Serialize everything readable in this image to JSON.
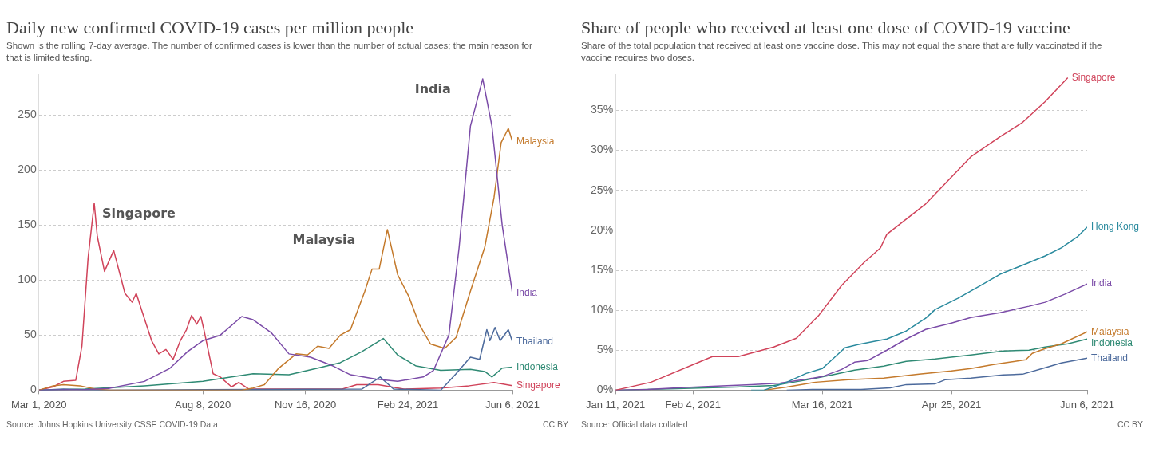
{
  "chart_data": [
    {
      "type": "line",
      "title": "Daily new confirmed COVID-19 cases per million people",
      "subtitle": "Shown is the rolling 7-day average. The number of confirmed cases is lower than the number of actual cases; the main reason for that is limited testing.",
      "xlim": [
        "2020-03-01",
        "2021-06-06"
      ],
      "xticks": [
        {
          "value": "2020-03-01",
          "label": "Mar 1, 2020"
        },
        {
          "value": "2020-08-08",
          "label": "Aug 8, 2020"
        },
        {
          "value": "2020-11-16",
          "label": "Nov 16, 2020"
        },
        {
          "value": "2021-02-24",
          "label": "Feb 24, 2021"
        },
        {
          "value": "2021-06-06",
          "label": "Jun 6, 2021"
        }
      ],
      "ylim": [
        0,
        287
      ],
      "yticks": [
        0,
        50,
        100,
        150,
        200,
        250
      ],
      "grid": "y",
      "legend": false,
      "marker": "none",
      "line_style": "solid",
      "series": [
        {
          "name": "India",
          "color": "#7b4ca8",
          "x": [
            "2020-03-01",
            "2020-04-15",
            "2020-05-08",
            "2020-06-12",
            "2020-07-07",
            "2020-07-24",
            "2020-08-08",
            "2020-08-25",
            "2020-09-15",
            "2020-09-26",
            "2020-10-14",
            "2020-10-31",
            "2020-11-21",
            "2020-12-13",
            "2020-12-30",
            "2021-01-24",
            "2021-02-14",
            "2021-03-11",
            "2021-03-21",
            "2021-04-05",
            "2021-04-15",
            "2021-04-26",
            "2021-05-08",
            "2021-05-17",
            "2021-05-27",
            "2021-06-06"
          ],
          "values": [
            0,
            0.5,
            1.5,
            8,
            20,
            35,
            45,
            50,
            67,
            64,
            52,
            33,
            30,
            22,
            14,
            10,
            8,
            12,
            18,
            50,
            130,
            240,
            283,
            240,
            150,
            88
          ]
        },
        {
          "name": "Malaysia",
          "color": "#c47a2c",
          "x": [
            "2020-03-01",
            "2020-03-15",
            "2020-03-25",
            "2020-04-10",
            "2020-04-25",
            "2020-05-10",
            "2020-09-15",
            "2020-09-26",
            "2020-10-07",
            "2020-10-21",
            "2020-11-07",
            "2020-11-18",
            "2020-11-28",
            "2020-12-09",
            "2020-12-20",
            "2020-12-30",
            "2021-01-13",
            "2021-01-20",
            "2021-01-27",
            "2021-02-04",
            "2021-02-14",
            "2021-02-25",
            "2021-03-07",
            "2021-03-18",
            "2021-04-01",
            "2021-04-12",
            "2021-04-26",
            "2021-05-10",
            "2021-05-19",
            "2021-05-26",
            "2021-06-02",
            "2021-06-06"
          ],
          "values": [
            0,
            4,
            5,
            4,
            1,
            0,
            0,
            2,
            5,
            20,
            33,
            32,
            40,
            38,
            50,
            55,
            90,
            110,
            110,
            146,
            105,
            85,
            60,
            42,
            38,
            48,
            90,
            130,
            175,
            225,
            238,
            226
          ]
        },
        {
          "name": "Thailand",
          "color": "#4c6a9c",
          "x": [
            "2020-03-01",
            "2020-03-25",
            "2020-05-01",
            "2021-01-10",
            "2021-01-28",
            "2021-02-10",
            "2021-03-28",
            "2021-04-12",
            "2021-04-26",
            "2021-05-05",
            "2021-05-12",
            "2021-05-15",
            "2021-05-20",
            "2021-05-25",
            "2021-06-02",
            "2021-06-06"
          ],
          "values": [
            0,
            1,
            0,
            1,
            12,
            1,
            0,
            15,
            30,
            28,
            55,
            45,
            57,
            45,
            55,
            44
          ]
        },
        {
          "name": "Indonesia",
          "color": "#2f8a74",
          "x": [
            "2020-03-01",
            "2020-04-15",
            "2020-06-12",
            "2020-08-08",
            "2020-09-05",
            "2020-09-26",
            "2020-10-31",
            "2020-11-28",
            "2020-12-20",
            "2021-01-10",
            "2021-01-31",
            "2021-02-14",
            "2021-03-04",
            "2021-03-28",
            "2021-04-26",
            "2021-05-10",
            "2021-05-17",
            "2021-05-27",
            "2021-06-06"
          ],
          "values": [
            0,
            1,
            4,
            8,
            12,
            15,
            14,
            20,
            25,
            35,
            47,
            32,
            22,
            18,
            19,
            17,
            12,
            20,
            21
          ]
        },
        {
          "name": "Singapore",
          "color": "#d0435a",
          "x": [
            "2020-03-01",
            "2020-03-15",
            "2020-03-25",
            "2020-04-06",
            "2020-04-12",
            "2020-04-18",
            "2020-04-24",
            "2020-04-27",
            "2020-05-04",
            "2020-05-13",
            "2020-05-24",
            "2020-05-31",
            "2020-06-04",
            "2020-06-12",
            "2020-06-19",
            "2020-06-26",
            "2020-07-03",
            "2020-07-10",
            "2020-07-17",
            "2020-07-23",
            "2020-07-28",
            "2020-08-02",
            "2020-08-06",
            "2020-08-09",
            "2020-08-18",
            "2020-08-25",
            "2020-09-05",
            "2020-09-12",
            "2020-09-22",
            "2020-12-22",
            "2021-01-05",
            "2021-01-26",
            "2021-02-20",
            "2021-03-28",
            "2021-04-25",
            "2021-05-19",
            "2021-06-06"
          ],
          "values": [
            0,
            3,
            8,
            9,
            40,
            120,
            170,
            140,
            108,
            127,
            88,
            80,
            88,
            65,
            45,
            33,
            37,
            28,
            45,
            55,
            68,
            60,
            67,
            55,
            15,
            12,
            3,
            7,
            1,
            1,
            5,
            5,
            1,
            2,
            4,
            7,
            4
          ]
        }
      ],
      "annotations": [
        {
          "text": "Singapore",
          "x": "2020-04-24",
          "y": 170
        },
        {
          "text": "Malaysia",
          "x": "2021-02-04",
          "y": 146
        },
        {
          "text": "India",
          "x": "2021-05-08",
          "y": 283
        },
        "Source: Johns Hopkins University CSSE COVID-19 Data",
        "CC BY"
      ]
    },
    {
      "type": "line",
      "title": "Share of people who received at least one dose of COVID-19 vaccine",
      "subtitle": "Share of the total population that received at least one vaccine dose. This may not equal the share that are fully vaccinated if the vaccine requires two doses.",
      "xlim": [
        "2021-01-11",
        "2021-06-06"
      ],
      "xticks": [
        {
          "value": "2021-01-11",
          "label": "Jan 11, 2021"
        },
        {
          "value": "2021-02-04",
          "label": "Feb 4, 2021"
        },
        {
          "value": "2021-03-16",
          "label": "Mar 16, 2021"
        },
        {
          "value": "2021-04-25",
          "label": "Apr 25, 2021"
        },
        {
          "value": "2021-06-06",
          "label": "Jun 6, 2021"
        }
      ],
      "ylim": [
        0,
        39.5
      ],
      "yticks": [
        {
          "value": 0,
          "label": "0%"
        },
        {
          "value": 5,
          "label": "5%"
        },
        {
          "value": 10,
          "label": "10%"
        },
        {
          "value": 15,
          "label": "15%"
        },
        {
          "value": 20,
          "label": "20%"
        },
        {
          "value": 25,
          "label": "25%"
        },
        {
          "value": 30,
          "label": "30%"
        },
        {
          "value": 35,
          "label": "35%"
        }
      ],
      "grid": "y",
      "legend": false,
      "marker": "none",
      "line_style": "solid",
      "series": [
        {
          "name": "Singapore",
          "color": "#d0435a",
          "x": [
            "2021-01-11",
            "2021-01-22",
            "2021-02-10",
            "2021-02-18",
            "2021-03-01",
            "2021-03-08",
            "2021-03-15",
            "2021-03-22",
            "2021-03-29",
            "2021-04-03",
            "2021-04-05",
            "2021-04-17",
            "2021-05-01",
            "2021-05-10",
            "2021-05-17",
            "2021-05-24",
            "2021-05-31"
          ],
          "values": [
            0,
            1,
            4.2,
            4.2,
            5.4,
            6.5,
            9.4,
            13.1,
            16,
            17.8,
            19.5,
            23.3,
            29.2,
            31.7,
            33.5,
            36.1,
            39.1
          ]
        },
        {
          "name": "Hong Kong",
          "color": "#2a8a9e",
          "x": [
            "2021-02-22",
            "2021-02-26",
            "2021-03-05",
            "2021-03-11",
            "2021-03-16",
            "2021-03-19",
            "2021-03-23",
            "2021-03-27",
            "2021-04-01",
            "2021-04-05",
            "2021-04-11",
            "2021-04-17",
            "2021-04-20",
            "2021-04-27",
            "2021-05-04",
            "2021-05-10",
            "2021-05-18",
            "2021-05-24",
            "2021-05-29",
            "2021-06-03",
            "2021-06-06"
          ],
          "values": [
            0,
            0,
            1,
            2.1,
            2.7,
            3.8,
            5.3,
            5.7,
            6.1,
            6.4,
            7.4,
            9.0,
            10.1,
            11.5,
            13.1,
            14.5,
            15.8,
            16.8,
            17.8,
            19.2,
            20.4
          ]
        },
        {
          "name": "India",
          "color": "#7b4ca8",
          "x": [
            "2021-01-11",
            "2021-01-21",
            "2021-01-30",
            "2021-02-10",
            "2021-02-22",
            "2021-03-03",
            "2021-03-10",
            "2021-03-16",
            "2021-03-22",
            "2021-03-26",
            "2021-03-30",
            "2021-04-05",
            "2021-04-11",
            "2021-04-17",
            "2021-04-25",
            "2021-05-01",
            "2021-05-10",
            "2021-05-19",
            "2021-05-24",
            "2021-05-30",
            "2021-06-06"
          ],
          "values": [
            0,
            0.1,
            0.3,
            0.5,
            0.7,
            0.9,
            1.3,
            1.7,
            2.6,
            3.5,
            3.7,
            5.0,
            6.4,
            7.6,
            8.4,
            9.1,
            9.7,
            10.5,
            11.0,
            12.0,
            13.3
          ]
        },
        {
          "name": "Malaysia",
          "color": "#c47a2c",
          "x": [
            "2021-02-26",
            "2021-03-05",
            "2021-03-14",
            "2021-03-24",
            "2021-04-04",
            "2021-04-15",
            "2021-04-25",
            "2021-05-01",
            "2021-05-08",
            "2021-05-13",
            "2021-05-18",
            "2021-05-20",
            "2021-05-24",
            "2021-05-29",
            "2021-06-06"
          ],
          "values": [
            0,
            0.4,
            1.0,
            1.3,
            1.5,
            2.0,
            2.4,
            2.7,
            3.2,
            3.5,
            3.8,
            4.6,
            5.2,
            5.8,
            7.3
          ]
        },
        {
          "name": "Indonesia",
          "color": "#2f8a74",
          "x": [
            "2021-01-11",
            "2021-01-30",
            "2021-02-17",
            "2021-03-01",
            "2021-03-10",
            "2021-03-19",
            "2021-03-26",
            "2021-04-04",
            "2021-04-11",
            "2021-04-20",
            "2021-05-01",
            "2021-05-11",
            "2021-05-19",
            "2021-05-24",
            "2021-05-31",
            "2021-06-06"
          ],
          "values": [
            0,
            0.2,
            0.4,
            0.6,
            1.2,
            1.9,
            2.5,
            3.0,
            3.6,
            3.9,
            4.4,
            4.9,
            5.0,
            5.4,
            5.8,
            6.4
          ]
        },
        {
          "name": "Thailand",
          "color": "#4c6a9c",
          "x": [
            "2021-03-05",
            "2021-03-14",
            "2021-03-28",
            "2021-04-06",
            "2021-04-11",
            "2021-04-20",
            "2021-04-23",
            "2021-05-01",
            "2021-05-11",
            "2021-05-17",
            "2021-05-24",
            "2021-05-29",
            "2021-06-06"
          ],
          "values": [
            0,
            0.1,
            0.1,
            0.3,
            0.7,
            0.8,
            1.3,
            1.5,
            1.9,
            2.0,
            2.8,
            3.4,
            4.0
          ]
        }
      ],
      "annotations": [
        "Source: Official data collated",
        "CC BY"
      ]
    }
  ]
}
